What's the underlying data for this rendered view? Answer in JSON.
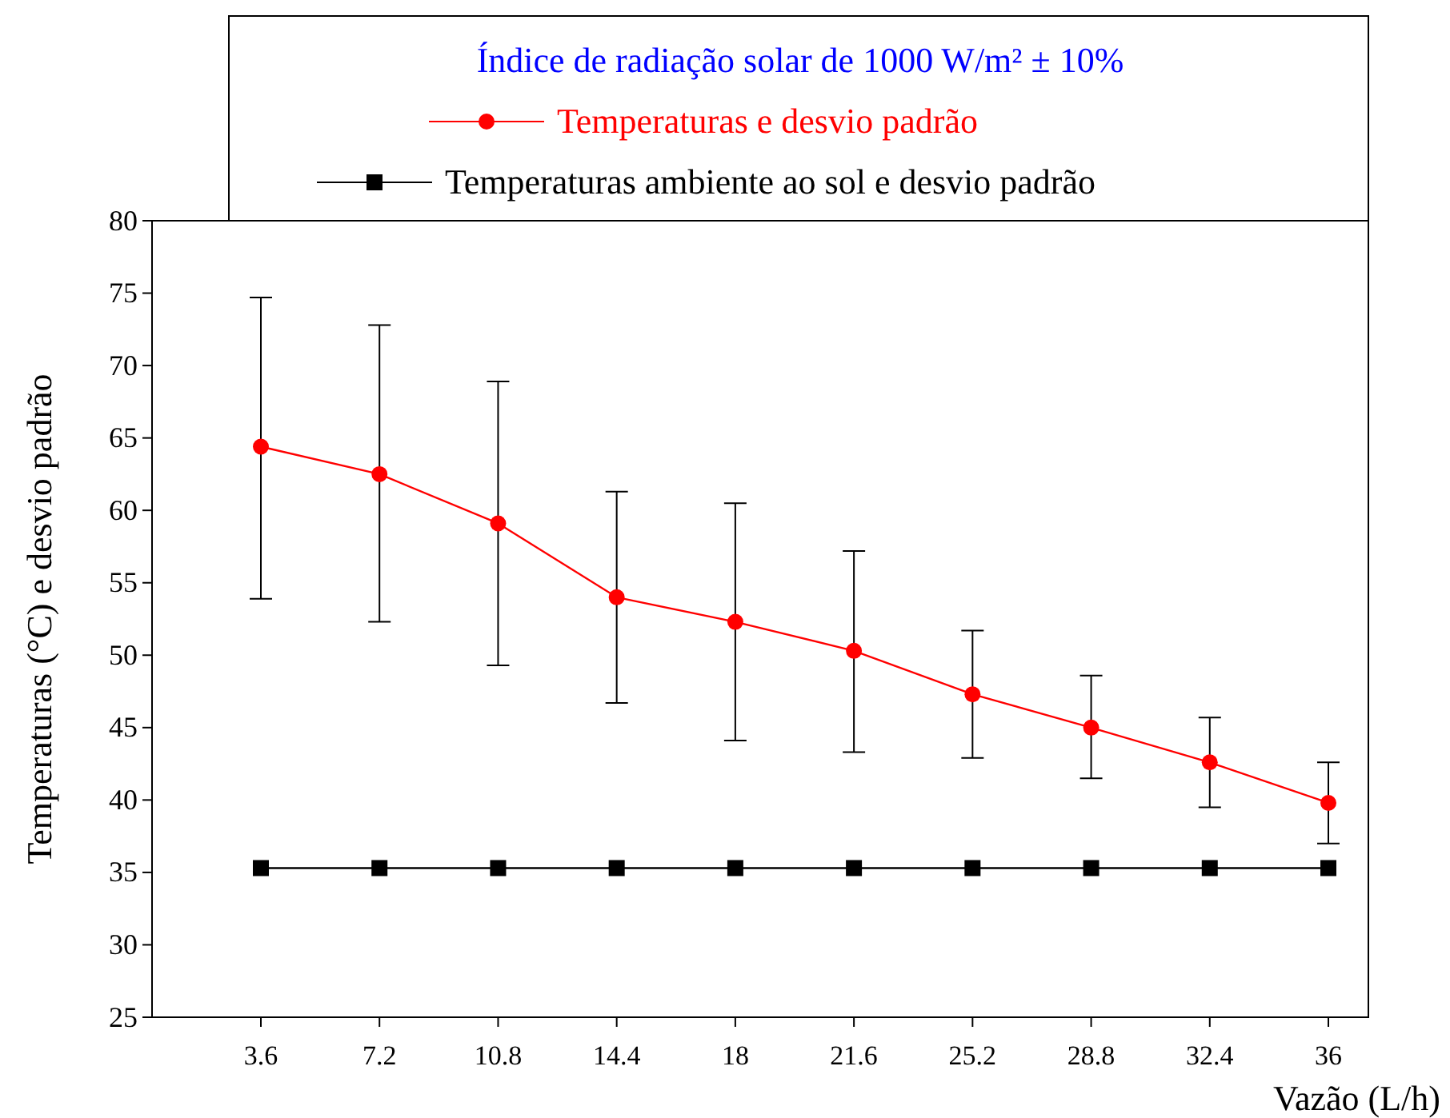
{
  "chart_data": {
    "type": "line",
    "legend_title": "Índice de radiação solar de 1000 W/m² ± 10%",
    "xlabel": "Vazão (L/h)",
    "ylabel": "Temperaturas (°C) e desvio padrão",
    "categories": [
      "3.6",
      "7.2",
      "10.8",
      "14.4",
      "18",
      "21.6",
      "25.2",
      "28.8",
      "32.4",
      "36"
    ],
    "series": [
      {
        "name": "Temperaturas e desvio padrão",
        "color": "#ff0000",
        "marker": "circle",
        "values": [
          64.4,
          62.5,
          59.1,
          54.0,
          52.3,
          50.3,
          47.3,
          45.0,
          42.6,
          39.8
        ],
        "errors": [
          [
            53.9,
            74.7
          ],
          [
            52.3,
            72.8
          ],
          [
            49.3,
            68.9
          ],
          [
            46.7,
            61.3
          ],
          [
            44.1,
            60.5
          ],
          [
            43.3,
            57.2
          ],
          [
            42.9,
            51.7
          ],
          [
            41.5,
            48.6
          ],
          [
            39.5,
            45.7
          ],
          [
            37.0,
            42.6
          ]
        ]
      },
      {
        "name": "Temperaturas ambiente ao sol e desvio padrão",
        "color": "#000000",
        "marker": "square",
        "values": [
          35.3,
          35.3,
          35.3,
          35.3,
          35.3,
          35.3,
          35.3,
          35.3,
          35.3,
          35.3
        ]
      }
    ],
    "ylim": [
      25,
      80
    ],
    "yticks": [
      25,
      30,
      35,
      40,
      45,
      50,
      55,
      60,
      65,
      70,
      75,
      80
    ],
    "grid": false,
    "legend": "top",
    "line_style": "solid"
  }
}
